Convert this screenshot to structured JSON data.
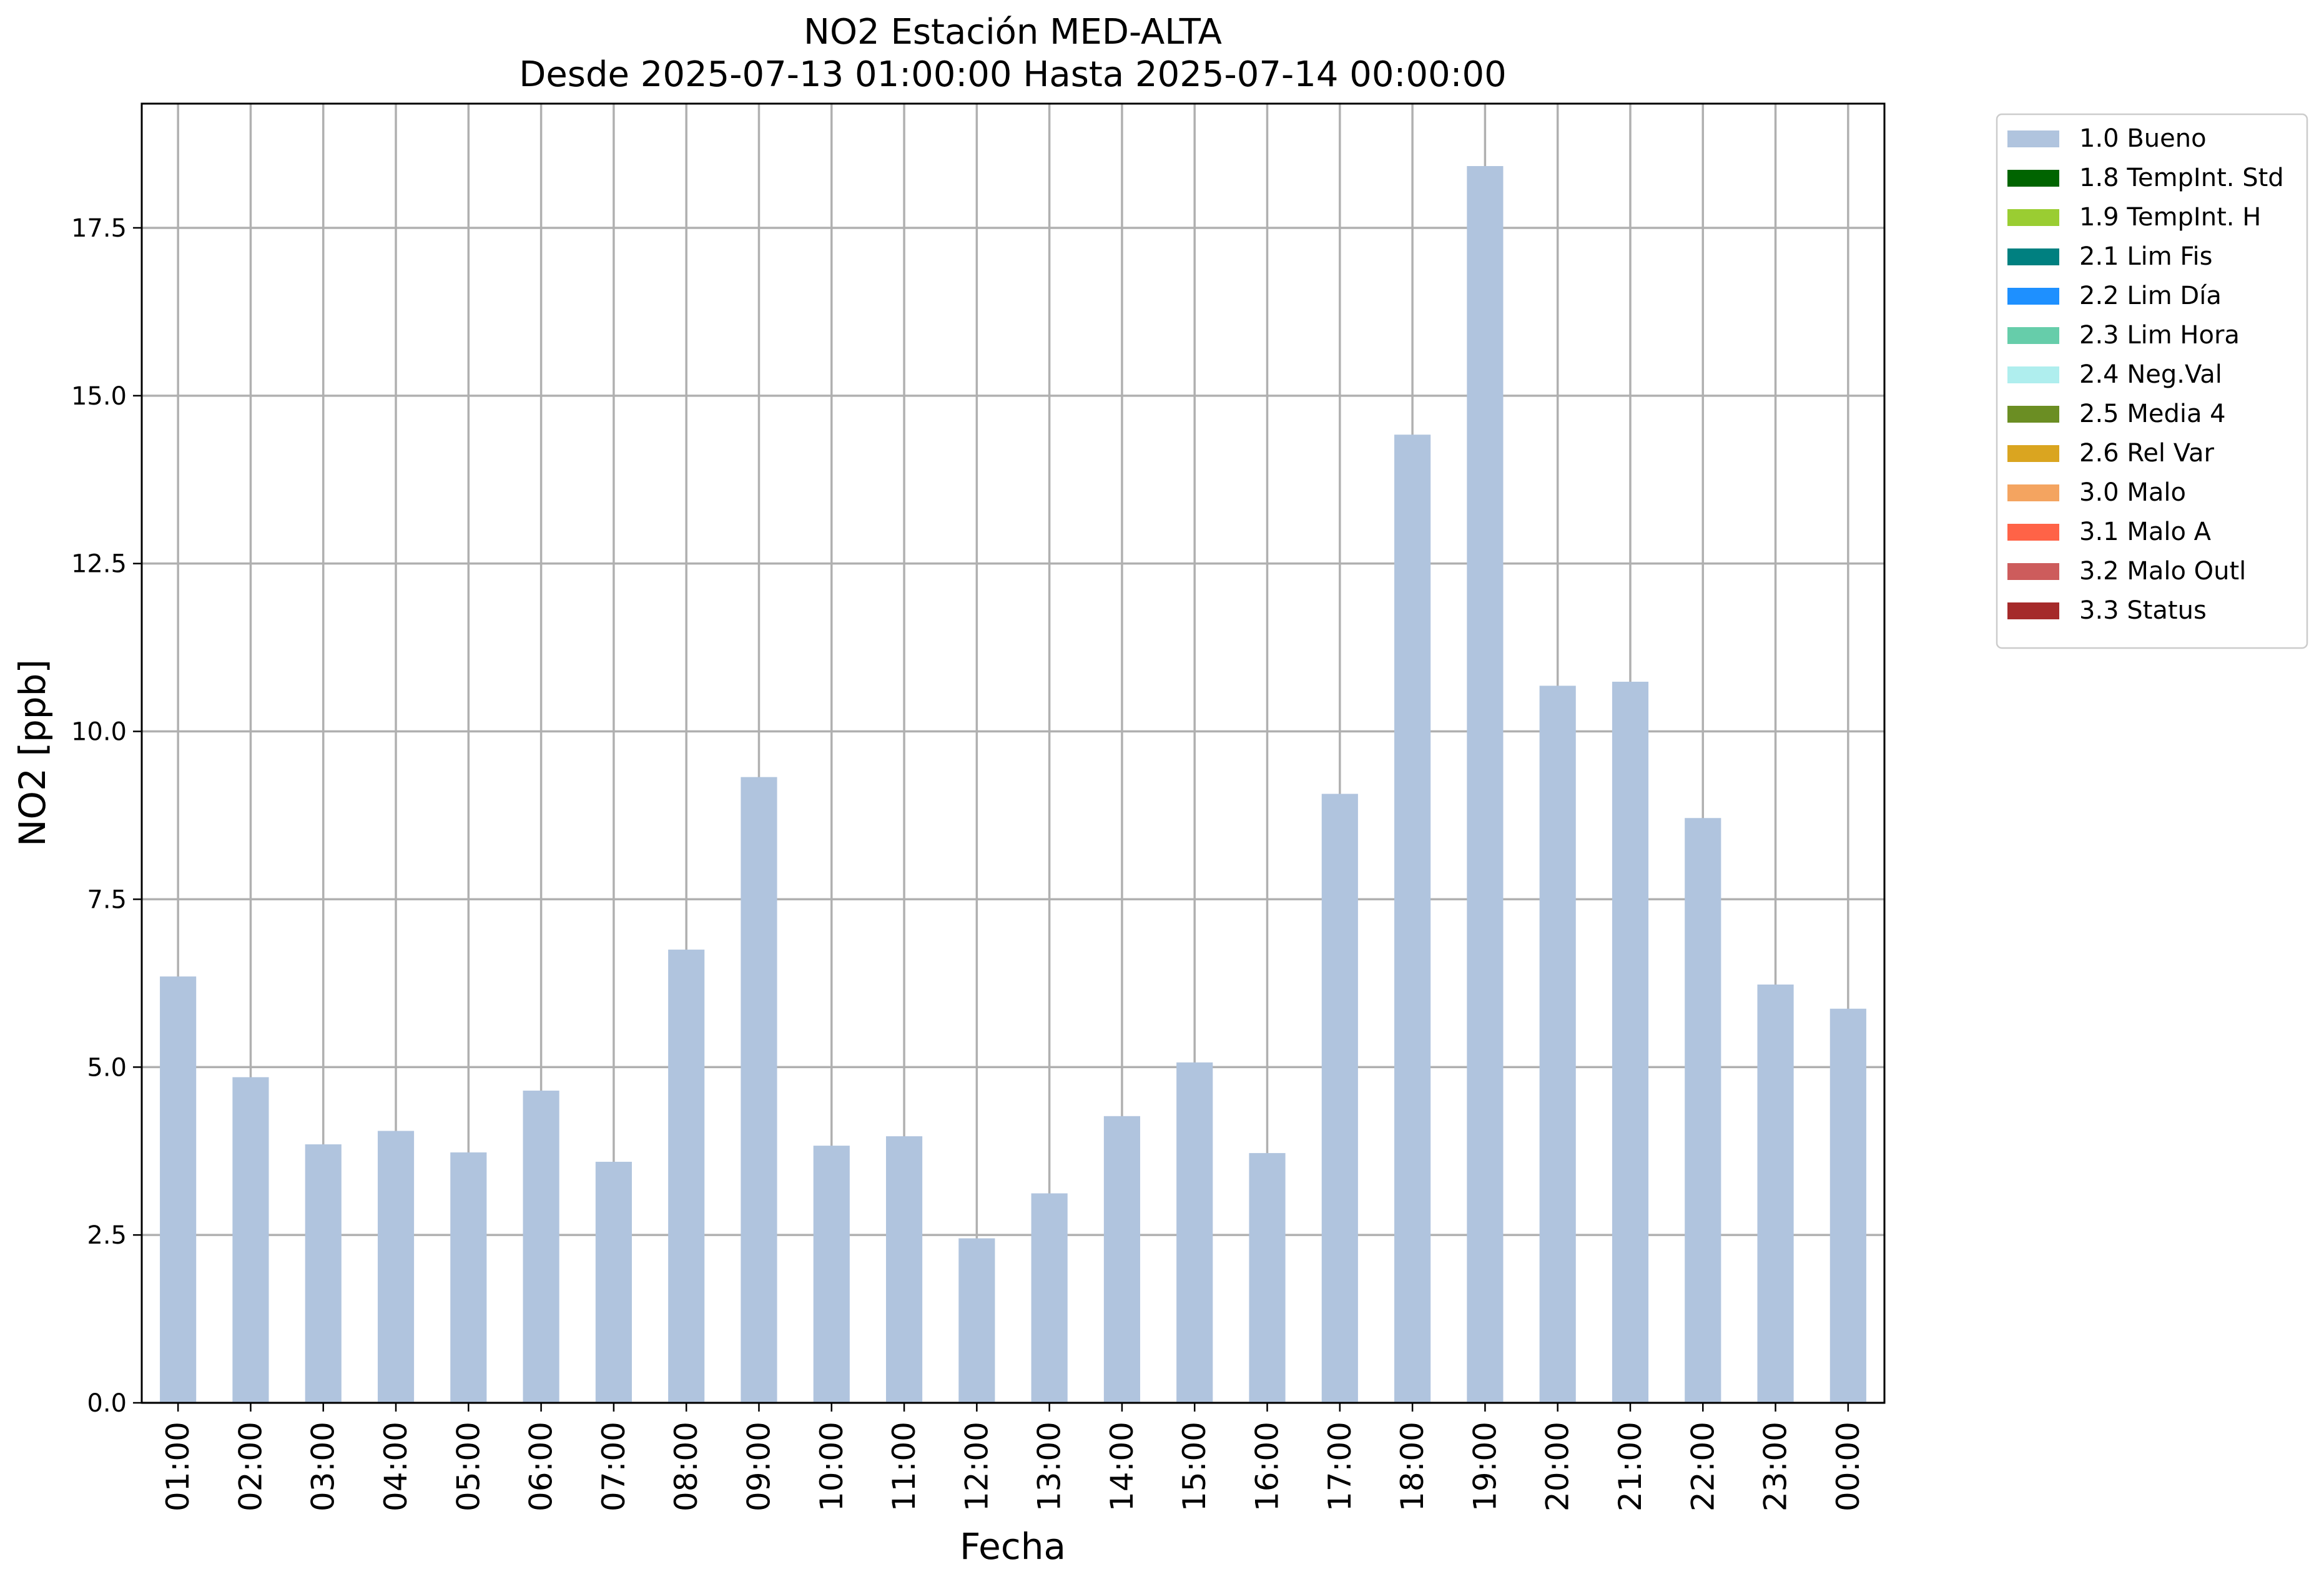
{
  "chart_data": {
    "type": "bar",
    "title": "NO2 Estación MED-ALTA",
    "subtitle": "Desde 2025-07-13 01:00:00 Hasta 2025-07-14 00:00:00",
    "xlabel": "Fecha",
    "ylabel": "NO2 [ppb]",
    "ylim": [
      0,
      19.35
    ],
    "yticks": [
      0.0,
      2.5,
      5.0,
      7.5,
      10.0,
      12.5,
      15.0,
      17.5
    ],
    "ytick_labels": [
      "0.0",
      "2.5",
      "5.0",
      "7.5",
      "10.0",
      "12.5",
      "15.0",
      "17.5"
    ],
    "grid": true,
    "legend_position": "outside-top-right",
    "categories": [
      "01:00",
      "02:00",
      "03:00",
      "04:00",
      "05:00",
      "06:00",
      "07:00",
      "08:00",
      "09:00",
      "10:00",
      "11:00",
      "12:00",
      "13:00",
      "14:00",
      "15:00",
      "16:00",
      "17:00",
      "18:00",
      "19:00",
      "20:00",
      "21:00",
      "22:00",
      "23:00",
      "00:00"
    ],
    "series": [
      {
        "name": "1.0 Bueno",
        "color": "#b0c4de",
        "values": [
          6.35,
          4.85,
          3.85,
          4.05,
          3.73,
          4.65,
          3.59,
          6.75,
          9.32,
          3.83,
          3.97,
          2.45,
          3.12,
          4.27,
          5.07,
          3.72,
          9.07,
          14.42,
          18.42,
          10.68,
          10.74,
          8.71,
          6.23,
          5.87
        ]
      }
    ],
    "legend": [
      {
        "label": "1.0 Bueno",
        "color": "#b0c4de"
      },
      {
        "label": "1.8 TempInt. Std",
        "color": "#006400"
      },
      {
        "label": "1.9 TempInt. H",
        "color": "#9acd32"
      },
      {
        "label": "2.1 Lim Fis",
        "color": "#008080"
      },
      {
        "label": "2.2 Lim Día",
        "color": "#1e90ff"
      },
      {
        "label": "2.3 Lim Hora",
        "color": "#66cdaa"
      },
      {
        "label": "2.4 Neg.Val",
        "color": "#afeeee"
      },
      {
        "label": "2.5 Media 4",
        "color": "#6b8e23"
      },
      {
        "label": "2.6 Rel Var",
        "color": "#daa520"
      },
      {
        "label": "3.0 Malo",
        "color": "#f4a460"
      },
      {
        "label": "3.1 Malo A",
        "color": "#ff6347"
      },
      {
        "label": "3.2 Malo Outl",
        "color": "#cd5c5c"
      },
      {
        "label": "3.3 Status",
        "color": "#a52a2a"
      }
    ]
  }
}
